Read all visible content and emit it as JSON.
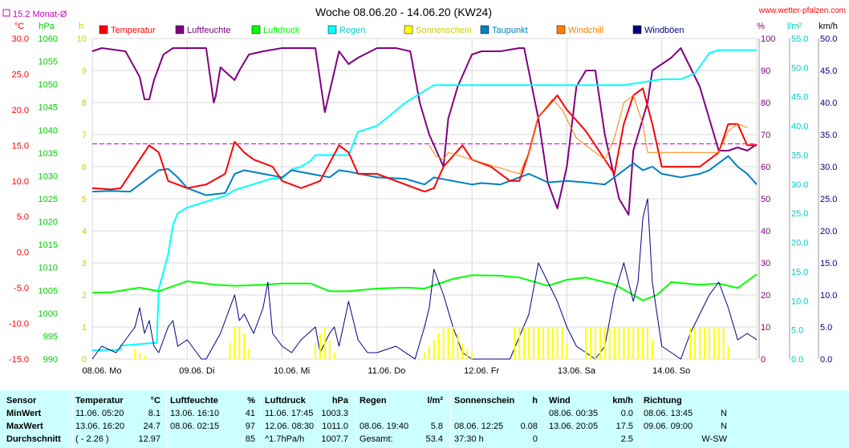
{
  "chart_data": {
    "type": "line",
    "title": "Woche 08.06.20 - 14.06.20 (KW24)",
    "source": "www.wetter-pfalzen.com",
    "monthly_avg_label": "15.2 Monat-Ø",
    "monthly_avg_value": 15.2,
    "x_ticks": [
      "08.06. Mo",
      "09.06. Di",
      "10.06. Mi",
      "11.06. Do",
      "12.06. Fr",
      "13.06. Sa",
      "14.06. So"
    ],
    "axes": {
      "temperature": {
        "unit": "°C",
        "ticks": [
          "30.0",
          "25.0",
          "20.0",
          "15.0",
          "10.0",
          "5.0",
          "0.0",
          "-5.0",
          "-10.0",
          "-15.0"
        ],
        "range": [
          -15,
          30
        ],
        "color": "#ff0000"
      },
      "pressure": {
        "unit": "hPa",
        "ticks": [
          "1060",
          "1055",
          "1050",
          "1045",
          "1040",
          "1035",
          "1030",
          "1025",
          "1020",
          "1015",
          "1010",
          "1005",
          "1000",
          "995",
          "990"
        ],
        "range": [
          990,
          1060
        ],
        "color": "#00cc00"
      },
      "sunshine": {
        "unit": "h",
        "ticks": [
          "10",
          "9",
          "8",
          "7",
          "6",
          "5",
          "4",
          "3",
          "2",
          "1",
          "0"
        ],
        "range": [
          0,
          10
        ],
        "color": "#cccc00"
      },
      "humidity": {
        "unit": "%",
        "ticks": [
          "100",
          "90",
          "80",
          "70",
          "60",
          "50",
          "40",
          "30",
          "20",
          "10",
          "0"
        ],
        "range": [
          0,
          100
        ],
        "color": "#800080"
      },
      "rain": {
        "unit": "l/m²",
        "ticks": [
          "55.0",
          "50.0",
          "45.0",
          "40.0",
          "35.0",
          "30.0",
          "25.0",
          "20.0",
          "15.0",
          "10.0",
          "5.0",
          "0.0"
        ],
        "range": [
          0,
          55
        ],
        "color": "#00cccc"
      },
      "wind": {
        "unit": "km/h",
        "ticks": [
          "50.0",
          "45.0",
          "40.0",
          "35.0",
          "30.0",
          "25.0",
          "20.0",
          "15.0",
          "10.0",
          "5.0",
          "0.0"
        ],
        "range": [
          0,
          50
        ],
        "color": "#000080"
      }
    },
    "legend": [
      {
        "name": "Temperatur",
        "color": "#ff0000"
      },
      {
        "name": "Luftfeuchte",
        "color": "#800080"
      },
      {
        "name": "Luftdruck",
        "color": "#00ff00"
      },
      {
        "name": "Regen",
        "color": "#00ffff"
      },
      {
        "name": "Sonnenschein",
        "color": "#ffff00"
      },
      {
        "name": "Taupunkt",
        "color": "#0080c0"
      },
      {
        "name": "Windchill",
        "color": "#ff8000"
      },
      {
        "name": "Windböen",
        "color": "#000080"
      }
    ],
    "x_day_range": [
      0,
      7
    ],
    "series": [
      {
        "name": "Luftfeuchte",
        "axis": "humidity",
        "color": "#800080",
        "width": 2,
        "x": [
          0,
          0.1,
          0.35,
          0.5,
          0.55,
          0.6,
          0.65,
          0.75,
          0.85,
          1.0,
          1.2,
          1.28,
          1.3,
          1.35,
          1.5,
          1.55,
          1.65,
          1.8,
          2.0,
          2.2,
          2.35,
          2.45,
          2.6,
          2.7,
          2.8,
          3.0,
          3.2,
          3.35,
          3.45,
          3.55,
          3.7,
          3.75,
          3.85,
          4.0,
          4.1,
          4.2,
          4.3,
          4.5,
          4.55,
          4.7,
          4.8,
          4.9,
          5.0,
          5.1,
          5.2,
          5.3,
          5.4,
          5.55,
          5.65,
          5.7,
          5.85,
          5.9,
          6.0,
          6.1,
          6.2,
          6.4,
          6.6,
          6.7,
          6.8,
          6.9,
          7.0
        ],
        "y": [
          96,
          97,
          96,
          88,
          81,
          81,
          87,
          95,
          97,
          97,
          97,
          80,
          82,
          91,
          87,
          90,
          95,
          96,
          97,
          97,
          97,
          77,
          96,
          92,
          94,
          97,
          97,
          96,
          80,
          70,
          60,
          75,
          85,
          95,
          96,
          96,
          96,
          97,
          97,
          75,
          55,
          47,
          60,
          85,
          90,
          90,
          70,
          50,
          45,
          65,
          80,
          90,
          92,
          94,
          97,
          85,
          65,
          65,
          66,
          65,
          67
        ]
      },
      {
        "name": "Regen",
        "axis": "rain",
        "color": "#00ffff",
        "width": 2,
        "x": [
          0,
          0.3,
          0.3,
          0.68,
          0.7,
          0.8,
          0.85,
          0.9,
          1.0,
          1.2,
          1.4,
          1.5,
          1.7,
          1.9,
          2.0,
          2.1,
          2.2,
          2.3,
          2.35,
          2.5,
          2.6,
          2.7,
          2.8,
          3.0,
          3.3,
          3.6,
          3.8,
          4.0,
          4.2,
          4.5,
          5.0,
          5.3,
          5.6,
          5.8,
          6.0,
          6.2,
          6.35,
          6.5,
          6.6,
          6.8,
          7.0
        ],
        "y": [
          1.5,
          1.6,
          2.3,
          2.8,
          12,
          18,
          23,
          25,
          26,
          27,
          28,
          29,
          30,
          31,
          31,
          32.5,
          33,
          34,
          35,
          35,
          35,
          35,
          39,
          40,
          44,
          47,
          47,
          47,
          47,
          47,
          47,
          47,
          47,
          47.5,
          48,
          48,
          49,
          52.5,
          53,
          53,
          53
        ]
      },
      {
        "name": "Luftdruck",
        "axis": "pressure",
        "color": "#00ff00",
        "width": 2,
        "x": [
          0,
          0.2,
          0.5,
          0.7,
          1.0,
          1.3,
          1.5,
          1.8,
          2.0,
          2.3,
          2.5,
          2.7,
          3.0,
          3.3,
          3.5,
          3.8,
          4.0,
          4.3,
          4.5,
          4.8,
          5.0,
          5.2,
          5.5,
          5.7,
          5.8,
          5.95,
          6.1,
          6.4,
          6.6,
          6.8,
          7.0
        ],
        "y": [
          1004.5,
          1004.6,
          1005.6,
          1004.8,
          1007,
          1006.2,
          1006,
          1006.2,
          1006.5,
          1006.5,
          1004.8,
          1004.8,
          1005.4,
          1005.6,
          1005.4,
          1007.5,
          1008.3,
          1008.2,
          1007.8,
          1006,
          1007.3,
          1007.8,
          1006.3,
          1004,
          1002.8,
          1004,
          1006.8,
          1006.2,
          1006.5,
          1005.5,
          1008.5
        ]
      },
      {
        "name": "Taupunkt",
        "axis": "temperature",
        "color": "#0080c0",
        "width": 2,
        "x": [
          0,
          0.2,
          0.4,
          0.5,
          0.6,
          0.7,
          0.8,
          0.9,
          1.0,
          1.2,
          1.4,
          1.5,
          1.6,
          1.8,
          2.0,
          2.1,
          2.3,
          2.5,
          2.6,
          2.7,
          3.0,
          3.3,
          3.5,
          3.6,
          3.8,
          4.0,
          4.1,
          4.3,
          4.5,
          4.6,
          4.8,
          5.0,
          5.2,
          5.4,
          5.5,
          5.6,
          5.7,
          5.8,
          5.9,
          6.0,
          6.2,
          6.4,
          6.5,
          6.7,
          6.8,
          6.9,
          7.0
        ],
        "y": [
          8.5,
          8.6,
          8.5,
          9.5,
          10.5,
          11.5,
          11.7,
          10.5,
          9,
          8,
          8.3,
          11,
          11.5,
          11,
          10.5,
          11.5,
          11,
          10.5,
          11.5,
          11.3,
          10.5,
          10.3,
          9.5,
          10.5,
          10,
          9.5,
          9.7,
          9.5,
          10.5,
          11,
          9.8,
          10,
          9.8,
          9.5,
          10.5,
          11.5,
          12.5,
          11.5,
          12,
          11,
          10.5,
          11,
          11.5,
          13.5,
          12,
          11,
          9.5
        ]
      },
      {
        "name": "Temperatur",
        "axis": "temperature",
        "color": "#ff0000",
        "width": 2,
        "x": [
          0,
          0.2,
          0.3,
          0.5,
          0.6,
          0.7,
          0.8,
          1.0,
          1.2,
          1.4,
          1.5,
          1.6,
          1.7,
          1.9,
          2.0,
          2.2,
          2.4,
          2.6,
          2.7,
          2.8,
          3.0,
          3.2,
          3.4,
          3.5,
          3.6,
          3.7,
          3.9,
          4.0,
          4.2,
          4.4,
          4.5,
          4.6,
          4.7,
          4.9,
          5.0,
          5.2,
          5.4,
          5.5,
          5.6,
          5.7,
          5.8,
          5.9,
          6.0,
          6.2,
          6.4,
          6.6,
          6.7,
          6.8,
          6.9,
          7.0
        ],
        "y": [
          9,
          8.8,
          9,
          13,
          15,
          14,
          10,
          9,
          9.5,
          11,
          15.5,
          14,
          13,
          12,
          10,
          9,
          10,
          15,
          14,
          11,
          11,
          10,
          9,
          8.5,
          9,
          12,
          15,
          13,
          12,
          10,
          10,
          14,
          19,
          22,
          20,
          17,
          13,
          11,
          18,
          22,
          23,
          18,
          12,
          12,
          12,
          14,
          18,
          18,
          15,
          15
        ]
      },
      {
        "name": "Windchill",
        "axis": "temperature",
        "color": "#ff8000",
        "width": 1,
        "x": [
          3.55,
          3.62,
          3.7,
          3.75,
          4.5,
          4.6,
          4.7,
          4.85,
          4.95,
          5.1,
          5.4,
          5.5,
          5.6,
          5.7,
          5.8,
          5.85,
          6.6,
          6.7,
          6.8,
          6.9
        ],
        "y": [
          15,
          13.5,
          13,
          14,
          11,
          14,
          19,
          21.5,
          20,
          16,
          13,
          16,
          21,
          22,
          18,
          14,
          14,
          17,
          18,
          17.5
        ]
      },
      {
        "name": "Windböen",
        "axis": "wind",
        "color": "#000080",
        "width": 1,
        "x": [
          0,
          0.1,
          0.25,
          0.45,
          0.5,
          0.55,
          0.6,
          0.65,
          0.7,
          0.75,
          0.8,
          0.85,
          0.9,
          1.0,
          1.1,
          1.15,
          1.2,
          1.35,
          1.5,
          1.55,
          1.6,
          1.7,
          1.8,
          1.85,
          1.9,
          2.0,
          2.1,
          2.2,
          2.35,
          2.4,
          2.5,
          2.55,
          2.6,
          2.7,
          2.8,
          2.9,
          3.0,
          3.2,
          3.4,
          3.5,
          3.55,
          3.6,
          3.7,
          3.8,
          3.9,
          4.0,
          4.2,
          4.4,
          4.6,
          4.7,
          4.8,
          4.9,
          5.0,
          5.1,
          5.2,
          5.3,
          5.4,
          5.5,
          5.6,
          5.7,
          5.75,
          5.8,
          5.85,
          5.9,
          6.0,
          6.2,
          6.3,
          6.4,
          6.5,
          6.6,
          6.7,
          6.8,
          6.9,
          7.0
        ],
        "y": [
          0,
          2,
          1,
          5,
          8,
          4,
          6,
          2,
          1,
          3,
          5,
          6,
          2,
          3,
          1,
          0,
          0,
          4,
          10,
          6,
          7,
          4,
          8,
          12,
          4,
          2,
          1,
          3,
          5,
          1,
          4,
          5,
          2,
          9,
          3,
          1,
          1,
          2,
          0,
          5,
          8,
          14,
          10,
          5,
          1,
          0,
          0,
          0,
          7,
          15,
          12,
          9,
          5,
          2,
          1,
          0,
          2,
          10,
          15,
          9,
          12,
          22,
          25,
          12,
          2,
          0,
          4,
          7,
          10,
          12,
          8,
          3,
          4,
          3
        ]
      },
      {
        "name": "Sonnenschein",
        "axis": "sunshine",
        "color": "#ffff00",
        "width": 1,
        "bars": true,
        "x": [
          0.45,
          0.5,
          0.55,
          1.45,
          1.5,
          1.55,
          1.6,
          1.65,
          2.35,
          2.4,
          2.45,
          2.5,
          2.55,
          3.5,
          3.55,
          3.6,
          3.65,
          3.7,
          3.75,
          3.8,
          3.85,
          3.9,
          3.95,
          4.0,
          4.45,
          4.5,
          4.55,
          4.6,
          4.65,
          4.7,
          4.75,
          4.8,
          4.85,
          4.9,
          4.95,
          5.0,
          5.2,
          5.25,
          5.3,
          5.35,
          5.4,
          5.45,
          5.5,
          5.55,
          5.6,
          5.65,
          5.7,
          5.75,
          5.8,
          5.85,
          5.9,
          6.3,
          6.35,
          6.4,
          6.45,
          6.5,
          6.55,
          6.6,
          6.65,
          6.7
        ],
        "y": [
          0.3,
          0.2,
          0.1,
          0.5,
          1,
          1,
          0.8,
          0.3,
          0.5,
          0.8,
          1,
          0.6,
          0.2,
          0.2,
          0.4,
          0.6,
          0.8,
          1,
          1,
          1,
          0.8,
          0.5,
          0.3,
          0.2,
          1,
          1,
          1,
          1,
          1,
          1,
          1,
          1,
          1,
          1,
          1,
          0.5,
          1,
          1,
          1,
          1,
          1,
          1,
          1,
          1,
          1,
          1,
          1,
          1,
          1,
          1,
          0.6,
          1,
          1,
          1,
          1,
          1,
          1,
          1,
          1,
          0.4
        ]
      }
    ]
  },
  "table": {
    "header": [
      "Sensor",
      "Temperatur",
      "°C",
      "Luftfeuchte",
      "%",
      "Luftdruck",
      "hPa",
      "Regen",
      "l/m²",
      "Sonnenschein",
      "h",
      "Wind",
      "km/h",
      "Richtung"
    ],
    "rows": [
      {
        "label": "MinWert",
        "t_time": "11.06.  05:20",
        "t_val": "8.1",
        "h_time": "13.06.  16:10",
        "h_val": "41",
        "p_time": "11.06.  17:45",
        "p_val": "1003.3",
        "r_time": "",
        "r_val": "",
        "s_time": "",
        "s_val": "",
        "w_time": "08.06.  00:35",
        "w_val": "0.0",
        "d_time": "08.06.  13:45",
        "d_val": "N"
      },
      {
        "label": "MaxWert",
        "t_time": "13.06.  16:20",
        "t_val": "24.7",
        "h_time": "08.06.  02:15",
        "h_val": "97",
        "p_time": "12.06.  08:30",
        "p_val": "1011.0",
        "r_time": "08.06.  19:40",
        "r_val": "5.8",
        "s_time": "08.06.  12:25",
        "s_val": "0.08",
        "w_time": "13.06.  20:05",
        "w_val": "17.5",
        "d_time": "09.06.  09:00",
        "d_val": "N"
      },
      {
        "label": "Durchschnitt",
        "t_time": "( - 2.26 )",
        "t_val": "12.97",
        "h_time": "",
        "h_val": "85",
        "p_time": "^1.7hPa/h",
        "p_val": "1007.7",
        "r_time": "Gesamt:",
        "r_val": "53.4",
        "s_time": "37:30 h",
        "s_val": "0",
        "w_time": "",
        "w_val": "2.5",
        "d_time": "",
        "d_val": "W-SW"
      }
    ]
  }
}
